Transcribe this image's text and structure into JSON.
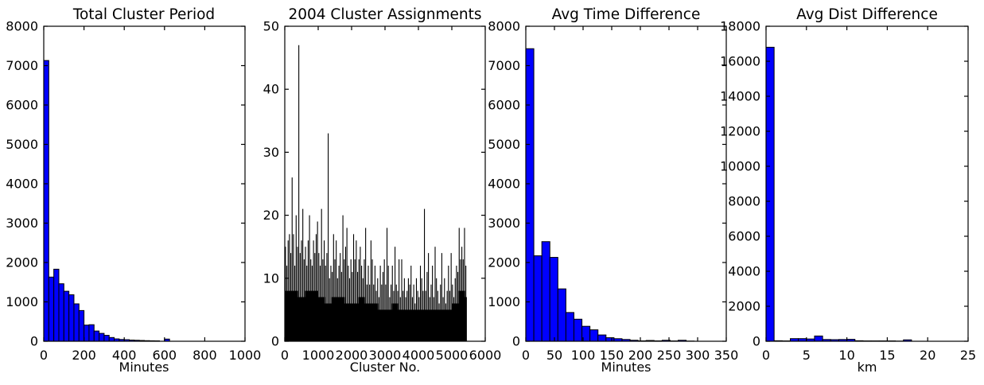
{
  "figure": {
    "background_color": "#ffffff",
    "bar_fill_color": "#0000ff",
    "bar_edge_color": "#000000",
    "spike_color": "#000000",
    "axis_color": "#000000",
    "text_color": "#000000"
  },
  "chart_data": [
    {
      "type": "bar",
      "title": "Total Cluster Period",
      "xlabel": "Minutes",
      "ylabel": "",
      "xlim": [
        0,
        1000
      ],
      "ylim": [
        0,
        8000
      ],
      "xticks": [
        0,
        200,
        400,
        600,
        800,
        1000
      ],
      "yticks": [
        0,
        1000,
        2000,
        3000,
        4000,
        5000,
        6000,
        7000,
        8000
      ],
      "grid": false,
      "bin_start": 0,
      "bin_width": 25,
      "values": [
        7130,
        1630,
        1830,
        1460,
        1270,
        1180,
        950,
        780,
        410,
        420,
        260,
        200,
        150,
        95,
        60,
        45,
        40,
        30,
        25,
        20,
        15,
        12,
        10,
        0,
        55
      ]
    },
    {
      "type": "spikes",
      "title": "2004 Cluster Assignments",
      "xlabel": "Cluster No.",
      "ylabel": "",
      "xlim": [
        0,
        6000
      ],
      "ylim": [
        0,
        50
      ],
      "xticks": [
        0,
        1000,
        2000,
        3000,
        4000,
        5000,
        6000
      ],
      "yticks": [
        0,
        10,
        20,
        30,
        40,
        50
      ],
      "grid": false,
      "x_start": 20,
      "x_step": 40,
      "data_end": 5450,
      "samples": [
        15,
        12,
        16,
        17,
        14,
        26,
        17,
        12,
        20,
        15,
        47,
        14,
        16,
        21,
        13,
        15,
        12,
        16,
        20,
        13,
        12,
        16,
        14,
        17,
        19,
        14,
        12,
        21,
        13,
        16,
        12,
        14,
        33,
        10,
        12,
        11,
        17,
        13,
        16,
        10,
        12,
        14,
        11,
        20,
        13,
        15,
        18,
        12,
        10,
        13,
        11,
        17,
        13,
        16,
        11,
        13,
        15,
        12,
        10,
        13,
        18,
        9,
        12,
        9,
        16,
        13,
        9,
        12,
        8,
        10,
        7,
        12,
        9,
        11,
        13,
        9,
        18,
        12,
        7,
        9,
        12,
        8,
        15,
        9,
        8,
        13,
        7,
        13,
        8,
        10,
        7,
        8,
        10,
        9,
        12,
        7,
        9,
        6,
        10,
        8,
        7,
        12,
        10,
        8,
        21,
        8,
        11,
        14,
        7,
        9,
        12,
        7,
        15,
        10,
        8,
        6,
        9,
        14,
        7,
        10,
        6,
        8,
        12,
        8,
        14,
        9,
        7,
        10,
        12,
        11,
        18,
        13,
        15,
        13,
        18,
        12
      ],
      "base_envelope": {
        "x_step": 200,
        "values": [
          8,
          8,
          7,
          8,
          8,
          7,
          6,
          7,
          7,
          6,
          6,
          7,
          6,
          6,
          5,
          5,
          6,
          5,
          5,
          5,
          5,
          5,
          5,
          5,
          5,
          6,
          8,
          7
        ]
      }
    },
    {
      "type": "bar",
      "title": "Avg Time Difference",
      "xlabel": "Minutes",
      "ylabel": "",
      "xlim": [
        0,
        350
      ],
      "ylim": [
        0,
        8000
      ],
      "xticks": [
        0,
        50,
        100,
        150,
        200,
        250,
        300,
        350
      ],
      "yticks": [
        0,
        1000,
        2000,
        3000,
        4000,
        5000,
        6000,
        7000,
        8000
      ],
      "grid": false,
      "bin_start": 0,
      "bin_width": 14,
      "values": [
        7430,
        2170,
        2530,
        2130,
        1330,
        730,
        560,
        380,
        290,
        160,
        90,
        65,
        45,
        25,
        10,
        20,
        10,
        25,
        8,
        25,
        5
      ]
    },
    {
      "type": "bar",
      "title": "Avg Dist Difference",
      "xlabel": "km",
      "ylabel": "",
      "xlim": [
        0,
        25
      ],
      "ylim": [
        0,
        18000
      ],
      "xticks": [
        0,
        5,
        10,
        15,
        20,
        25
      ],
      "yticks": [
        0,
        2000,
        4000,
        6000,
        8000,
        10000,
        12000,
        14000,
        16000,
        18000
      ],
      "grid": false,
      "bin_start": 0,
      "bin_width": 1,
      "values": [
        16800,
        30,
        20,
        150,
        150,
        130,
        300,
        100,
        90,
        100,
        110,
        30,
        20,
        20,
        20,
        20,
        10,
        80
      ]
    }
  ]
}
